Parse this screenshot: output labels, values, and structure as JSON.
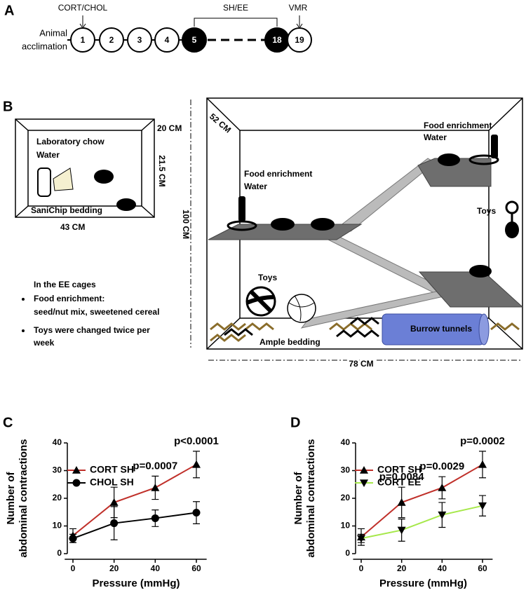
{
  "panel_a": {
    "label": "A",
    "left_label": [
      "Animal",
      "acclimation"
    ],
    "cort": "CORT/CHOL",
    "shee": "SH/EE",
    "vmr": "VMR",
    "steps": [
      "1",
      "2",
      "3",
      "4",
      "5",
      "18",
      "19"
    ]
  },
  "panel_b": {
    "label": "B",
    "sh_cage": {
      "chow": "Laboratory chow",
      "water": "Water",
      "bedding": "SaniChip bedding",
      "width": "43 CM",
      "depth": "20 CM",
      "height": "21.5 CM"
    },
    "ee_note": {
      "title": "In the EE cages",
      "bullets": [
        [
          "Food enrichment:",
          "seed/nut mix, sweetened cereal"
        ],
        [
          "Toys were changed twice per",
          "week"
        ]
      ]
    },
    "ee_cage": {
      "depth": "52 CM",
      "height": "100 CM",
      "width": "78 CM",
      "food1": "Food enrichment",
      "water1": "Water",
      "food2": "Food enrichment",
      "water2": "Water",
      "toys1": "Toys",
      "toys2": "Toys",
      "bedding": "Ample bedding",
      "tunnels": "Burrow tunnels"
    }
  },
  "chart_data": [
    {
      "type": "line",
      "panel": "C",
      "xlabel": "Pressure (mmHg)",
      "ylabel": [
        "Number of",
        "abdominal contractions"
      ],
      "x": [
        0,
        20,
        40,
        60
      ],
      "xlim": [
        -4,
        65
      ],
      "xticks": [
        0,
        20,
        40,
        60
      ],
      "ylim": [
        0,
        40
      ],
      "yticks": [
        0,
        10,
        20,
        30,
        40
      ],
      "series": [
        {
          "name": "CORT SH",
          "color": "#c0302a",
          "marker": "triangle-up",
          "values": [
            6.5,
            18.5,
            23.8,
            32.2
          ],
          "errors": [
            2.5,
            5.5,
            4.2,
            4.8
          ]
        },
        {
          "name": "CHOL SH",
          "color": "#000000",
          "marker": "circle",
          "values": [
            5.5,
            11,
            12.8,
            14.8
          ],
          "errors": [
            1.5,
            6,
            3,
            4
          ]
        }
      ],
      "annotations": [
        {
          "text": "p=0.0007",
          "x": 40
        },
        {
          "text": "p<0.0001",
          "x": 60
        }
      ]
    },
    {
      "type": "line",
      "panel": "D",
      "xlabel": "Pressure (mmHg)",
      "ylabel": [
        "Number of",
        "abdominal contractions"
      ],
      "x": [
        0,
        20,
        40,
        60
      ],
      "xlim": [
        -4,
        65
      ],
      "xticks": [
        0,
        20,
        40,
        60
      ],
      "ylim": [
        0,
        40
      ],
      "yticks": [
        0,
        10,
        20,
        30,
        40
      ],
      "series": [
        {
          "name": "CORT SH",
          "color": "#c0302a",
          "marker": "triangle-up",
          "values": [
            6,
            18.5,
            23.8,
            32.2
          ],
          "errors": [
            3,
            5.5,
            4,
            4.8
          ]
        },
        {
          "name": "CORT EE",
          "color": "#a6e84a",
          "marker": "triangle-down",
          "values": [
            5.5,
            8.5,
            14,
            17.3
          ],
          "errors": [
            1.5,
            4,
            4.5,
            3.7
          ]
        }
      ],
      "annotations": [
        {
          "text": "p=0.0084",
          "x": 20
        },
        {
          "text": "p=0.0029",
          "x": 40
        },
        {
          "text": "p=0.0002",
          "x": 60
        }
      ]
    }
  ]
}
